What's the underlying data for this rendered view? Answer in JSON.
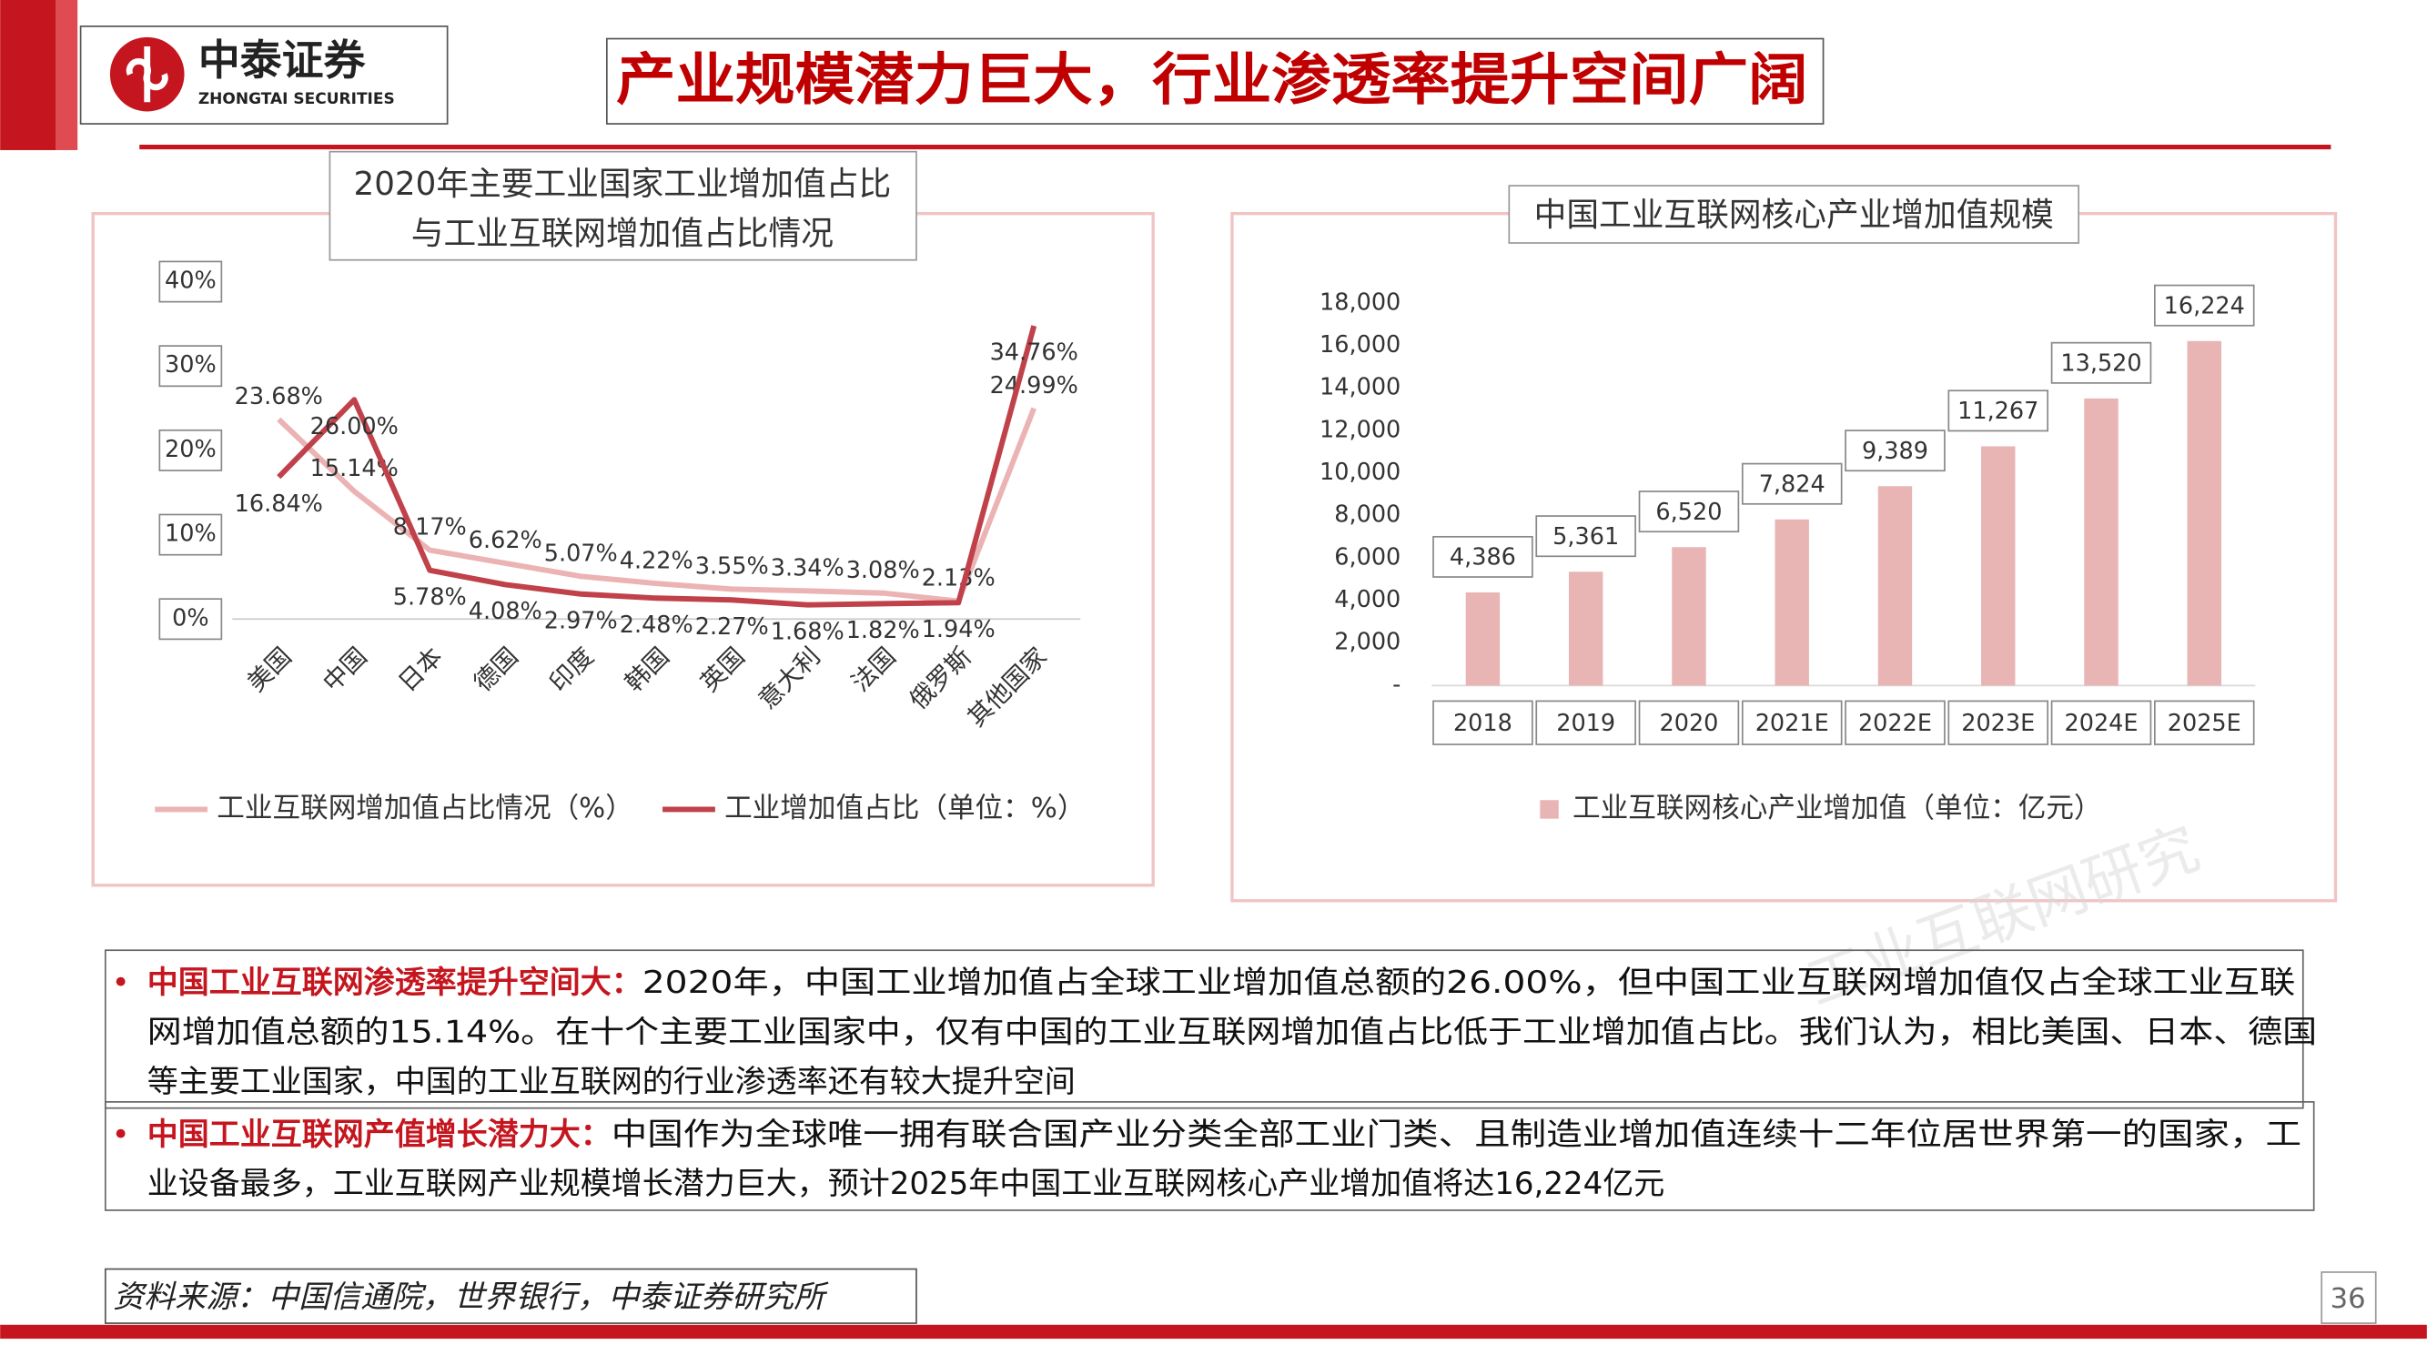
{
  "header": {
    "logo_cn": "中泰证券",
    "logo_en": "ZHONGTAI SECURITIES",
    "title": "产业规模潜力巨大，行业渗透率提升空间广阔"
  },
  "chart_data": [
    {
      "type": "line",
      "title": [
        "2020年主要工业国家工业增加值占比",
        "与工业互联网增加值占比情况"
      ],
      "categories": [
        "美国",
        "中国",
        "日本",
        "德国",
        "印度",
        "韩国",
        "英国",
        "意大利",
        "法国",
        "俄罗斯",
        "其他国家"
      ],
      "series": [
        {
          "name": "工业互联网增加值占比情况（%）",
          "color": "#ebb3b3",
          "values": [
            23.68,
            15.14,
            8.17,
            6.62,
            5.07,
            4.22,
            3.55,
            3.34,
            3.08,
            2.13,
            24.99
          ],
          "value_labels": [
            "23.68%",
            "15.14%",
            "8.17%",
            "6.62%",
            "5.07%",
            "4.22%",
            "3.55%",
            "3.34%",
            "3.08%",
            "2.13%",
            "24.99%"
          ]
        },
        {
          "name": "工业增加值占比（单位：%）",
          "color": "#c0414a",
          "values": [
            16.84,
            26.0,
            5.78,
            4.08,
            2.97,
            2.48,
            2.27,
            1.68,
            1.82,
            1.94,
            34.76
          ],
          "value_labels": [
            "16.84%",
            "26.00%",
            "5.78%",
            "4.08%",
            "2.97%",
            "2.48%",
            "2.27%",
            "1.68%",
            "1.82%",
            "1.94%",
            "34.76%"
          ]
        }
      ],
      "ylim": [
        0,
        40
      ],
      "yticks": [
        {
          "value": 0,
          "label": "0%"
        },
        {
          "value": 10,
          "label": "10%"
        },
        {
          "value": 20,
          "label": "20%"
        },
        {
          "value": 30,
          "label": "30%"
        },
        {
          "value": 40,
          "label": "40%"
        }
      ],
      "grid": false,
      "legend": "bottom"
    },
    {
      "type": "bar",
      "title": "中国工业互联网核心产业增加值规模",
      "categories": [
        "2018",
        "2019",
        "2020",
        "2021E",
        "2022E",
        "2023E",
        "2024E",
        "2025E"
      ],
      "series": [
        {
          "name": "工业互联网核心产业增加值（单位：亿元）",
          "color": "#e8b4b4",
          "values": [
            4386,
            5361,
            6520,
            7824,
            9389,
            11267,
            13520,
            16224
          ],
          "value_labels": [
            "4,386",
            "5,361",
            "6,520",
            "7,824",
            "9,389",
            "11,267",
            "13,520",
            "16,224"
          ]
        }
      ],
      "ylim": [
        0,
        18000
      ],
      "yticks": [
        {
          "value": 0,
          "label": "-"
        },
        {
          "value": 2000,
          "label": "2,000"
        },
        {
          "value": 4000,
          "label": "4,000"
        },
        {
          "value": 6000,
          "label": "6,000"
        },
        {
          "value": 8000,
          "label": "8,000"
        },
        {
          "value": 10000,
          "label": "10,000"
        },
        {
          "value": 12000,
          "label": "12,000"
        },
        {
          "value": 14000,
          "label": "14,000"
        },
        {
          "value": 16000,
          "label": "16,000"
        },
        {
          "value": 18000,
          "label": "18,000"
        }
      ],
      "grid": false,
      "legend": "bottom"
    }
  ],
  "watermark": "工业互联网研究",
  "bullets": [
    {
      "heading": "中国工业互联网渗透率提升空间大：",
      "lines": [
        "2020年，中国工业增加值占全球工业增加值总额的26.00%，但中国工业互联网增加值仅占全球工业互联",
        "网增加值总额的15.14%。在十个主要工业国家中，仅有中国的工业互联网增加值占比低于工业增加值占比。我们认为，相比美国、日本、德国",
        "等主要工业国家，中国的工业互联网的行业渗透率还有较大提升空间"
      ]
    },
    {
      "heading": "中国工业互联网产值增长潜力大：",
      "lines": [
        "中国作为全球唯一拥有联合国产业分类全部工业门类、且制造业增加值连续十二年位居世界第一的国家，工",
        "业设备最多，工业互联网产业规模增长潜力巨大，预计2025年中国工业互联网核心产业增加值将达16,224亿元"
      ]
    }
  ],
  "source": "资料来源：中国信通院，世界银行，中泰证券研究所",
  "page_number": "36"
}
